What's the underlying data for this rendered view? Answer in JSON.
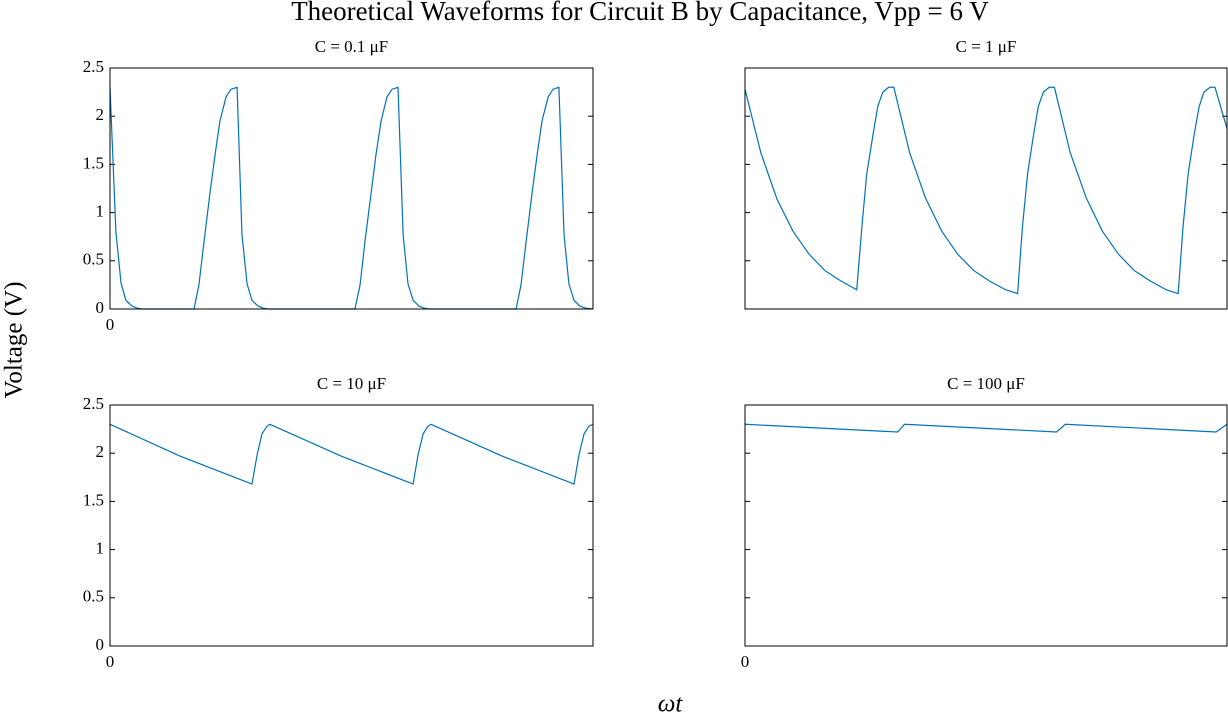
{
  "title": "Theoretical Waveforms for Circuit B by Capacitance, Vpp = 6 V",
  "x_label": "ωt",
  "y_label": "Voltage (V)",
  "chart_data": [
    {
      "type": "line",
      "title": "C = 0.1 μF",
      "color": "#0072bd",
      "xlim": [
        0,
        18.85
      ],
      "xticks": [
        0
      ],
      "ylim": [
        0,
        2.5
      ],
      "yticks": [
        0,
        0.5,
        1,
        1.5,
        2,
        2.5
      ],
      "show_ytick_labels": true,
      "grid": false,
      "x": [
        0,
        0.23,
        0.43,
        0.62,
        0.86,
        1.05,
        1.25,
        3.28,
        3.47,
        3.67,
        3.9,
        4.1,
        4.29,
        4.53,
        4.72,
        4.96,
        5.15,
        5.35,
        5.54,
        5.78,
        5.97,
        6.17,
        9.56,
        9.76,
        9.95,
        10.19,
        10.38,
        10.58,
        10.81,
        11.01,
        11.24,
        11.44,
        11.63,
        11.83,
        12.06,
        12.26,
        12.45,
        15.85,
        16.04,
        16.24,
        16.47,
        16.67,
        16.86,
        17.1,
        17.29,
        17.52,
        17.72,
        17.91,
        18.11,
        18.34,
        18.54,
        18.85
      ],
      "values": [
        2.3,
        0.8,
        0.27,
        0.09,
        0.03,
        0.01,
        0,
        0,
        0.25,
        0.7,
        1.2,
        1.6,
        1.95,
        2.2,
        2.28,
        2.3,
        0.77,
        0.26,
        0.09,
        0.03,
        0.01,
        0,
        0,
        0.25,
        0.7,
        1.2,
        1.6,
        1.95,
        2.2,
        2.28,
        2.3,
        0.77,
        0.26,
        0.09,
        0.03,
        0.01,
        0,
        0,
        0.25,
        0.7,
        1.2,
        1.6,
        1.95,
        2.2,
        2.28,
        2.3,
        0.77,
        0.26,
        0.09,
        0.03,
        0.01,
        0
      ]
    },
    {
      "type": "line",
      "title": "C = 1 μF",
      "color": "#0072bd",
      "xlim": [
        0,
        18.85
      ],
      "xticks": [],
      "ylim": [
        0,
        2.5
      ],
      "yticks": [
        0,
        0.5,
        1,
        1.5,
        2,
        2.5
      ],
      "show_ytick_labels": false,
      "grid": false,
      "x": [
        0,
        0.62,
        1.25,
        1.87,
        2.5,
        3.12,
        3.75,
        4.37,
        4.57,
        4.76,
        5.0,
        5.19,
        5.39,
        5.62,
        5.82,
        6.44,
        7.06,
        7.69,
        8.31,
        8.94,
        9.56,
        10.19,
        10.66,
        10.85,
        11.05,
        11.28,
        11.47,
        11.67,
        11.9,
        12.1,
        12.72,
        13.35,
        13.97,
        14.6,
        15.22,
        15.85,
        16.47,
        16.94,
        17.13,
        17.33,
        17.56,
        17.76,
        17.95,
        18.19,
        18.38,
        18.85
      ],
      "values": [
        2.28,
        1.62,
        1.14,
        0.81,
        0.57,
        0.4,
        0.29,
        0.2,
        0.85,
        1.4,
        1.8,
        2.1,
        2.25,
        2.3,
        2.3,
        1.62,
        1.15,
        0.81,
        0.57,
        0.4,
        0.29,
        0.2,
        0.16,
        0.85,
        1.4,
        1.8,
        2.1,
        2.25,
        2.3,
        2.3,
        1.62,
        1.15,
        0.81,
        0.57,
        0.4,
        0.29,
        0.2,
        0.16,
        0.85,
        1.4,
        1.8,
        2.1,
        2.25,
        2.3,
        2.3,
        1.87
      ]
    },
    {
      "type": "line",
      "title": "C = 10 μF",
      "color": "#0072bd",
      "xlim": [
        0,
        18.85
      ],
      "xticks": [
        0
      ],
      "ylim": [
        0,
        2.5
      ],
      "yticks": [
        0,
        0.5,
        1,
        1.5,
        2,
        2.5
      ],
      "show_ytick_labels": true,
      "grid": false,
      "x": [
        0,
        2.73,
        5.54,
        5.74,
        5.93,
        6.13,
        6.24,
        9.02,
        11.83,
        12.02,
        12.22,
        12.41,
        12.53,
        15.3,
        18.11,
        18.3,
        18.5,
        18.69,
        18.85
      ],
      "values": [
        2.3,
        1.97,
        1.68,
        1.98,
        2.2,
        2.28,
        2.3,
        1.97,
        1.68,
        1.98,
        2.2,
        2.28,
        2.3,
        1.97,
        1.68,
        1.98,
        2.2,
        2.28,
        2.3
      ]
    },
    {
      "type": "line",
      "title": "C = 100 μF",
      "color": "#0072bd",
      "xlim": [
        0,
        18.85
      ],
      "xticks": [
        0
      ],
      "ylim": [
        0,
        2.5
      ],
      "yticks": [
        0,
        0.5,
        1,
        1.5,
        2,
        2.5
      ],
      "show_ytick_labels": false,
      "grid": false,
      "x": [
        0,
        5.97,
        6.24,
        12.18,
        12.53,
        18.42,
        18.85
      ],
      "values": [
        2.3,
        2.22,
        2.3,
        2.22,
        2.3,
        2.22,
        2.3
      ]
    }
  ]
}
